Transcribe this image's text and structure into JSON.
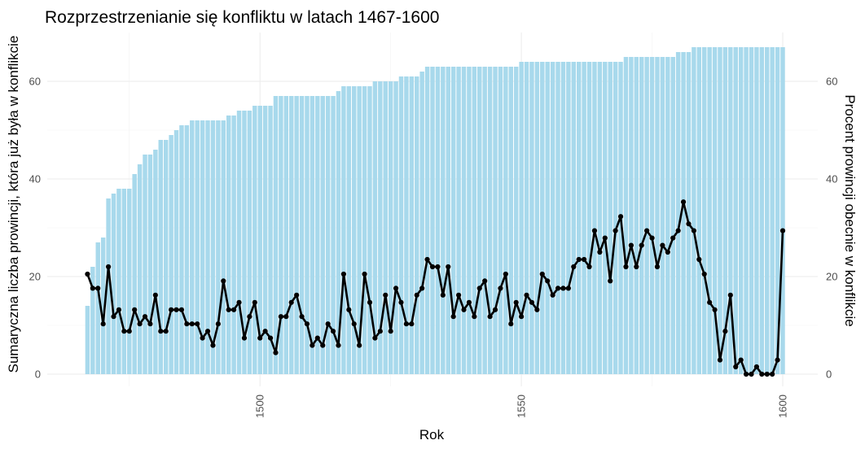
{
  "chart_data": {
    "type": "bar",
    "title": "Rozprzestrzenianie się konfliktu w latach 1467-1600",
    "xlabel": "Rok",
    "ylabel": "Sumaryczna liczba prowincji, która już była w konflikcie",
    "y2label": "Procent prowincji obecnie w konflikcie",
    "xlim": [
      1459.3,
      1606.7
    ],
    "ylim": [
      -2.5,
      70
    ],
    "y2lim": [
      -2.5,
      70
    ],
    "x_ticks": [
      1500,
      1550,
      1600
    ],
    "y_ticks": [
      0,
      20,
      40,
      60
    ],
    "y2_ticks": [
      0,
      20,
      40,
      60
    ],
    "grid": true,
    "x": [
      1467,
      1468,
      1469,
      1470,
      1471,
      1472,
      1473,
      1474,
      1475,
      1476,
      1477,
      1478,
      1479,
      1480,
      1481,
      1482,
      1483,
      1484,
      1485,
      1486,
      1487,
      1488,
      1489,
      1490,
      1491,
      1492,
      1493,
      1494,
      1495,
      1496,
      1497,
      1498,
      1499,
      1500,
      1501,
      1502,
      1503,
      1504,
      1505,
      1506,
      1507,
      1508,
      1509,
      1510,
      1511,
      1512,
      1513,
      1514,
      1515,
      1516,
      1517,
      1518,
      1519,
      1520,
      1521,
      1522,
      1523,
      1524,
      1525,
      1526,
      1527,
      1528,
      1529,
      1530,
      1531,
      1532,
      1533,
      1534,
      1535,
      1536,
      1537,
      1538,
      1539,
      1540,
      1541,
      1542,
      1543,
      1544,
      1545,
      1546,
      1547,
      1548,
      1549,
      1550,
      1551,
      1552,
      1553,
      1554,
      1555,
      1556,
      1557,
      1558,
      1559,
      1560,
      1561,
      1562,
      1563,
      1564,
      1565,
      1566,
      1567,
      1568,
      1569,
      1570,
      1571,
      1572,
      1573,
      1574,
      1575,
      1576,
      1577,
      1578,
      1579,
      1580,
      1581,
      1582,
      1583,
      1584,
      1585,
      1586,
      1587,
      1588,
      1589,
      1590,
      1591,
      1592,
      1593,
      1594,
      1595,
      1596,
      1597,
      1598,
      1599,
      1600
    ],
    "series": [
      {
        "type": "bar",
        "axis": "left",
        "color": "#a8d9ec",
        "values": [
          14,
          22,
          27,
          28,
          36,
          37,
          38,
          38,
          38,
          41,
          43,
          45,
          45,
          46,
          48,
          48,
          49,
          50,
          51,
          51,
          52,
          52,
          52,
          52,
          52,
          52,
          52,
          53,
          53,
          54,
          54,
          54,
          55,
          55,
          55,
          55,
          57,
          57,
          57,
          57,
          57,
          57,
          57,
          57,
          57,
          57,
          57,
          57,
          58,
          59,
          59,
          59,
          59,
          59,
          59,
          60,
          60,
          60,
          60,
          60,
          61,
          61,
          61,
          61,
          62,
          63,
          63,
          63,
          63,
          63,
          63,
          63,
          63,
          63,
          63,
          63,
          63,
          63,
          63,
          63,
          63,
          63,
          63,
          64,
          64,
          64,
          64,
          64,
          64,
          64,
          64,
          64,
          64,
          64,
          64,
          64,
          64,
          64,
          64,
          64,
          64,
          64,
          64,
          65,
          65,
          65,
          65,
          65,
          65,
          65,
          65,
          65,
          65,
          66,
          66,
          66,
          67,
          67,
          67,
          67,
          67,
          67,
          67,
          67,
          67,
          67,
          67,
          67,
          67,
          67,
          67,
          67,
          67,
          67
        ]
      },
      {
        "type": "line",
        "axis": "right",
        "color": "#000000",
        "values": [
          20.5,
          17.6,
          17.6,
          10.3,
          22.0,
          11.8,
          13.2,
          8.8,
          8.8,
          13.2,
          10.3,
          11.8,
          10.3,
          16.2,
          8.8,
          8.8,
          13.2,
          13.2,
          13.2,
          10.3,
          10.3,
          10.3,
          7.4,
          8.8,
          5.9,
          10.3,
          19.1,
          13.2,
          13.2,
          14.7,
          7.4,
          11.8,
          14.7,
          7.4,
          8.8,
          7.4,
          4.4,
          11.8,
          11.8,
          14.7,
          16.2,
          11.8,
          10.3,
          5.9,
          7.4,
          5.9,
          10.3,
          8.8,
          5.9,
          20.5,
          13.2,
          10.3,
          5.9,
          20.5,
          14.7,
          7.4,
          8.8,
          16.2,
          8.8,
          17.6,
          14.7,
          10.3,
          10.3,
          16.2,
          17.6,
          23.5,
          22.0,
          22.0,
          16.2,
          22.0,
          11.8,
          16.2,
          13.2,
          14.7,
          11.8,
          17.6,
          19.1,
          11.8,
          13.2,
          17.6,
          20.5,
          10.3,
          14.7,
          11.8,
          16.2,
          14.7,
          13.2,
          20.5,
          19.1,
          16.2,
          17.6,
          17.6,
          17.6,
          22.0,
          23.5,
          23.5,
          22.0,
          29.4,
          25.0,
          27.9,
          19.1,
          29.4,
          32.3,
          22.0,
          26.4,
          22.0,
          26.4,
          29.4,
          27.9,
          22.0,
          26.4,
          25.0,
          27.9,
          29.4,
          35.3,
          30.8,
          29.4,
          23.5,
          20.5,
          14.7,
          13.2,
          2.9,
          8.8,
          16.2,
          1.5,
          2.9,
          0.0,
          0.0,
          1.5,
          0.0,
          0.0,
          0.0,
          2.9,
          29.4
        ]
      }
    ]
  }
}
